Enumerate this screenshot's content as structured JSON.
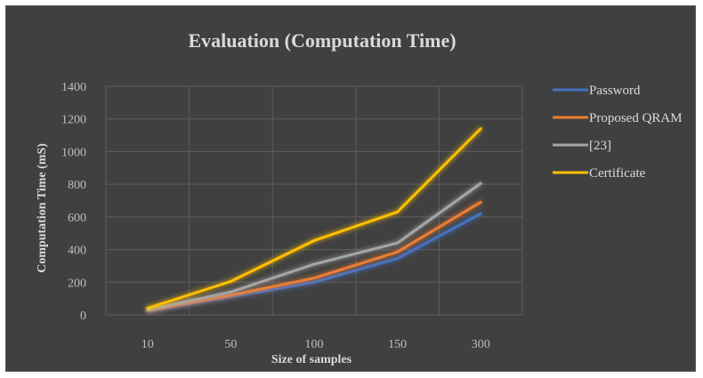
{
  "chart_data": {
    "type": "line",
    "title": "Evaluation (Computation Time)",
    "xlabel": "Size of samples",
    "ylabel": "Computation Time (mS)",
    "categories": [
      "10",
      "50",
      "100",
      "150",
      "300"
    ],
    "ylim": [
      0,
      1400
    ],
    "yticks": [
      0,
      200,
      400,
      600,
      800,
      1000,
      1200,
      1400
    ],
    "grid": true,
    "legend_position": "right",
    "series": [
      {
        "name": "Password",
        "values": [
          25,
          110,
          200,
          345,
          620
        ],
        "color": "#4472c4"
      },
      {
        "name": "Proposed QRAM",
        "values": [
          28,
          120,
          225,
          385,
          690
        ],
        "color": "#ed7d31"
      },
      {
        "name": "[23]",
        "values": [
          30,
          140,
          310,
          440,
          805
        ],
        "color": "#a5a5a5"
      },
      {
        "name": "Certificate",
        "values": [
          40,
          205,
          455,
          630,
          1140
        ],
        "color": "#ffc000"
      }
    ]
  }
}
